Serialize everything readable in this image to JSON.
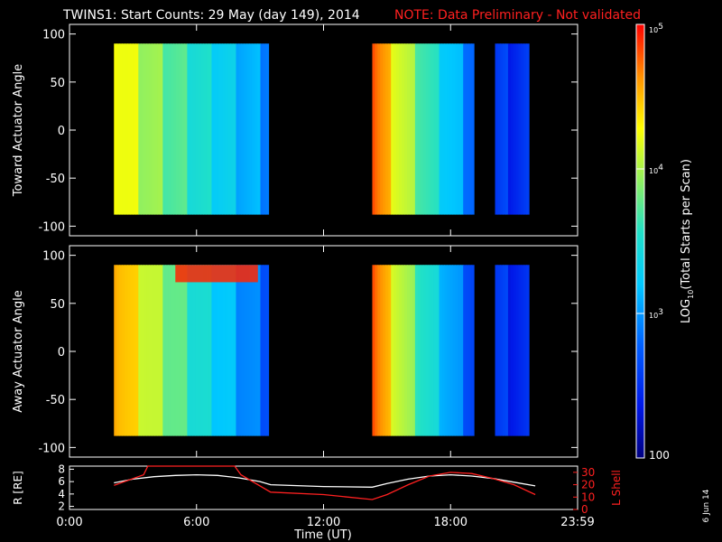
{
  "header": {
    "title": "TWINS1: Start Counts: 29 May (day 149), 2014",
    "note": "NOTE: Data Preliminary - Not validated"
  },
  "side_date": "6 Jun 14",
  "colorbar": {
    "label": "LOG10(Total Starts per Scan)",
    "ticks": [
      "10^5",
      "10^4",
      "10^3",
      "100"
    ]
  },
  "chart_data": [
    {
      "type": "heatmap",
      "title": "",
      "ylabel": "Toward Actuator Angle",
      "ylim": [
        -110,
        110
      ],
      "yticks": [
        100,
        50,
        0,
        -50,
        -100
      ],
      "angle_range": [
        -88,
        90
      ],
      "value_scale": "log10",
      "value_range": [
        100,
        100000
      ],
      "segments": [
        {
          "t_start": 2.1,
          "t_end": 9.4,
          "level_start": 0.8,
          "level_end": 0.32,
          "hot_band": null
        },
        {
          "t_start": 14.3,
          "t_end": 19.1,
          "level_start": 0.96,
          "level_end": 0.28,
          "hot_band": null
        },
        {
          "t_start": 20.1,
          "t_end": 21.7,
          "level_start": 0.18,
          "level_end": 0.16,
          "hot_band": null
        }
      ]
    },
    {
      "type": "heatmap",
      "title": "",
      "ylabel": "Away Actuator Angle",
      "ylim": [
        -110,
        110
      ],
      "yticks": [
        100,
        50,
        0,
        -50,
        -100
      ],
      "angle_range": [
        -88,
        90
      ],
      "value_scale": "log10",
      "value_range": [
        100,
        100000
      ],
      "segments": [
        {
          "t_start": 2.1,
          "t_end": 9.4,
          "level_start": 0.9,
          "level_end": 0.25,
          "hot_band": {
            "t_start": 5.0,
            "t_end": 8.9,
            "angle_low": 72,
            "angle_high": 90
          }
        },
        {
          "t_start": 14.3,
          "t_end": 19.1,
          "level_start": 0.96,
          "level_end": 0.22,
          "hot_band": null
        },
        {
          "t_start": 20.1,
          "t_end": 21.7,
          "level_start": 0.18,
          "level_end": 0.14,
          "hot_band": null
        }
      ]
    },
    {
      "type": "line",
      "ylabel": "R [RE]",
      "ylabel_right": "L Shell",
      "xlabel": "Time (UT)",
      "xticks": [
        "0:00",
        "6:00",
        "12:00",
        "18:00",
        "23:59"
      ],
      "xtick_values": [
        0,
        6,
        12,
        18,
        24
      ],
      "xlim": [
        0,
        24
      ],
      "ylim": [
        1.5,
        8.5
      ],
      "yticks": [
        2,
        4,
        6,
        8
      ],
      "ylim_right": [
        0,
        35
      ],
      "yticks_right": [
        0,
        10,
        20,
        30
      ],
      "series": [
        {
          "name": "R",
          "color": "#ffffff",
          "x": [
            2.1,
            3.0,
            4.0,
            5.0,
            6.0,
            7.0,
            8.0,
            9.0,
            9.5,
            12.0,
            14.3,
            15.0,
            16.0,
            17.0,
            18.0,
            19.0,
            20.0,
            21.0,
            22.0
          ],
          "y": [
            5.8,
            6.4,
            6.8,
            7.0,
            7.1,
            7.0,
            6.6,
            6.0,
            5.5,
            5.2,
            5.1,
            5.7,
            6.4,
            6.9,
            7.1,
            6.9,
            6.5,
            5.9,
            5.3
          ]
        },
        {
          "name": "L",
          "color": "#ff2020",
          "x": [
            2.1,
            3.5,
            3.7,
            7.8,
            8.1,
            9.5,
            12.0,
            14.3,
            15.0,
            16.0,
            17.0,
            18.0,
            19.0,
            20.0,
            21.0,
            22.0
          ],
          "y": [
            19.5,
            28,
            35,
            35,
            28,
            14,
            12,
            8,
            12,
            20,
            27,
            30,
            29,
            25,
            20,
            12
          ]
        }
      ]
    }
  ]
}
